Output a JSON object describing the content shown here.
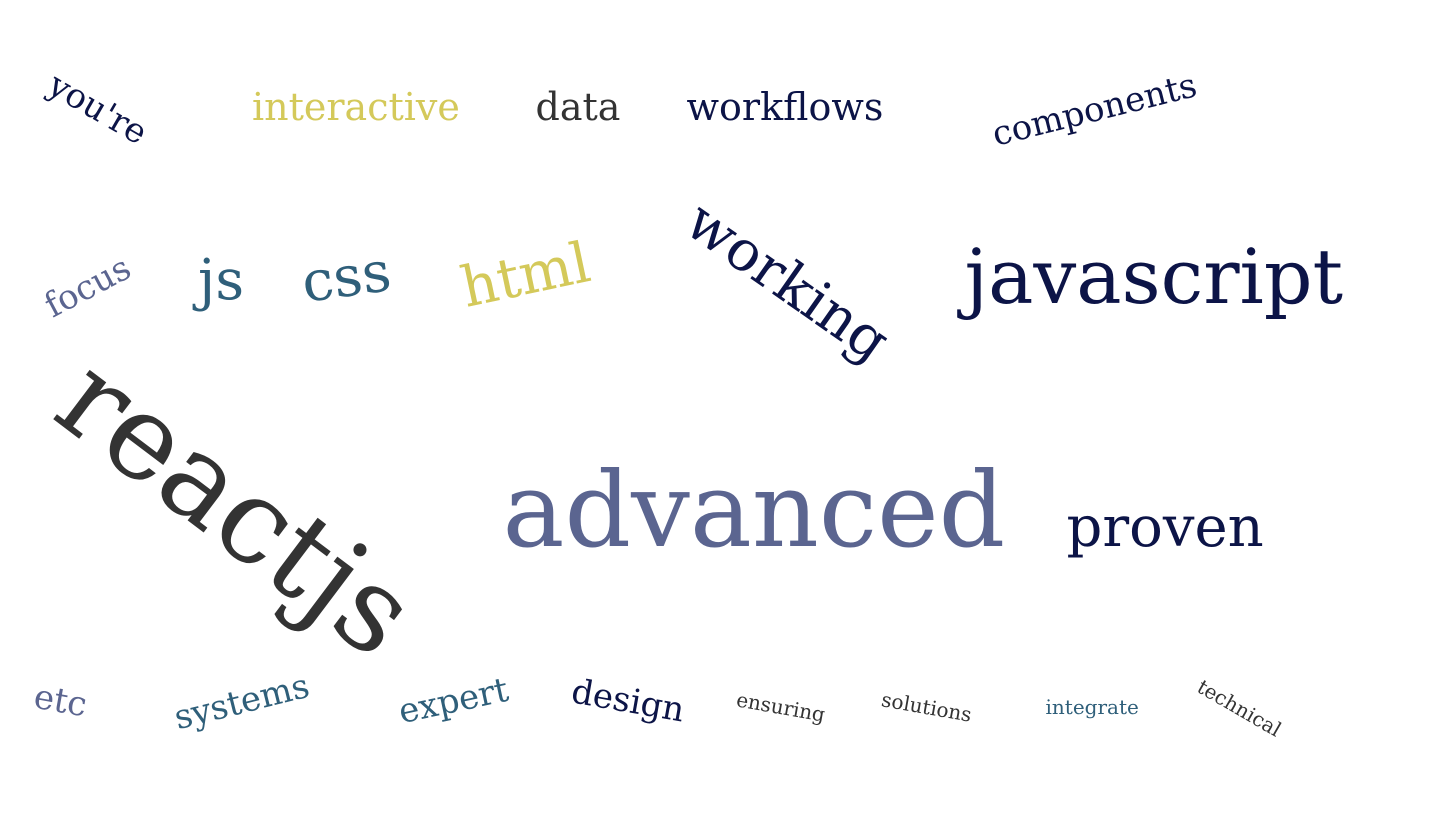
{
  "colors": {
    "background": "#ffffff",
    "navy": "#0c1447",
    "charcoal": "#333333",
    "slate": "#5b6590",
    "teal": "#2f5f7a",
    "mustard": "#d4c95a"
  },
  "words": [
    {
      "text": "reactjs",
      "color": "#333333"
    },
    {
      "text": "advanced",
      "color": "#5b6590"
    },
    {
      "text": "javascript",
      "color": "#0c1447"
    },
    {
      "text": "working",
      "color": "#0c1447"
    },
    {
      "text": "proven",
      "color": "#0c1447"
    },
    {
      "text": "html",
      "color": "#d4c95a"
    },
    {
      "text": "css",
      "color": "#2f5f7a"
    },
    {
      "text": "js",
      "color": "#2f5f7a"
    },
    {
      "text": "focus",
      "color": "#5b6590"
    },
    {
      "text": "you're",
      "color": "#0c1447"
    },
    {
      "text": "interactive",
      "color": "#d4c95a"
    },
    {
      "text": "data",
      "color": "#333333"
    },
    {
      "text": "workflows",
      "color": "#0c1447"
    },
    {
      "text": "components",
      "color": "#0c1447"
    },
    {
      "text": "etc",
      "color": "#5b6590"
    },
    {
      "text": "systems",
      "color": "#2f5f7a"
    },
    {
      "text": "expert",
      "color": "#2f5f7a"
    },
    {
      "text": "design",
      "color": "#0c1447"
    },
    {
      "text": "ensuring",
      "color": "#333333"
    },
    {
      "text": "solutions",
      "color": "#333333"
    },
    {
      "text": "integrate",
      "color": "#2f5f7a"
    },
    {
      "text": "technical",
      "color": "#333333"
    }
  ]
}
